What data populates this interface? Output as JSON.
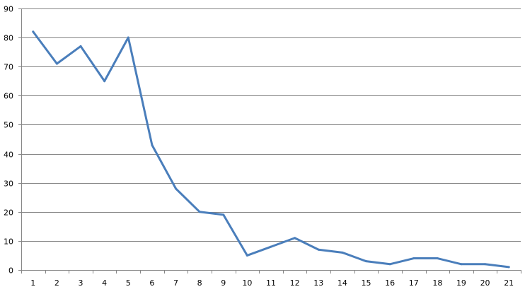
{
  "chart_data": {
    "type": "line",
    "title": "",
    "xlabel": "",
    "ylabel": "",
    "categories": [
      "1",
      "2",
      "3",
      "4",
      "5",
      "6",
      "7",
      "8",
      "9",
      "10",
      "11",
      "12",
      "13",
      "14",
      "15",
      "16",
      "17",
      "18",
      "19",
      "20",
      "21"
    ],
    "series": [
      {
        "values": [
          82,
          71,
          77,
          65,
          80,
          43,
          28,
          20,
          19,
          5,
          8,
          11,
          7,
          6,
          3,
          2,
          4,
          4,
          2,
          2,
          1
        ]
      }
    ],
    "ylim": [
      0,
      90
    ],
    "yticks": [
      0,
      10,
      20,
      30,
      40,
      50,
      60,
      70,
      80,
      90
    ],
    "grid": "horizontal",
    "legend": "none",
    "colors": {
      "line": "#4a7ebb",
      "grid": "#868686"
    }
  }
}
